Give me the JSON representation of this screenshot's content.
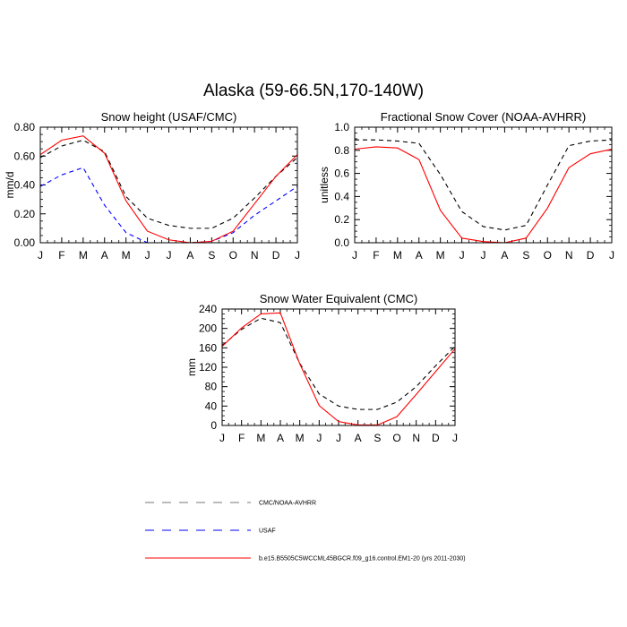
{
  "figure_title": "Alaska (59-66.5N,170-140W)",
  "legend": [
    {
      "label": "CMC/NOAA-AVHRR",
      "color": "#000000",
      "dash": "dashed"
    },
    {
      "label": "USAF",
      "color": "#0000ff",
      "dash": "dashed"
    },
    {
      "label": "b.e15.B5505C5WCCML45BGCR.f09_g16.control.EM1-20 (yrs 2011-2030)",
      "color": "#ff0000",
      "dash": "solid"
    }
  ],
  "chart_data": [
    {
      "type": "line",
      "title": "Snow height (USAF/CMC)",
      "xlabel": "",
      "ylabel": "mm/d",
      "ylim": [
        0,
        0.8
      ],
      "yticks": [
        "0.00",
        "0.20",
        "0.40",
        "0.60",
        "0.80"
      ],
      "categories": [
        "J",
        "F",
        "M",
        "A",
        "M",
        "J",
        "J",
        "A",
        "S",
        "O",
        "N",
        "D",
        "J"
      ],
      "series": [
        {
          "name": "CMC/NOAA-AVHRR",
          "color": "#000000",
          "dash": "dashed",
          "values": [
            0.59,
            0.67,
            0.71,
            0.63,
            0.32,
            0.17,
            0.12,
            0.1,
            0.1,
            0.17,
            0.31,
            0.46,
            0.59
          ]
        },
        {
          "name": "USAF",
          "color": "#0000ff",
          "dash": "dashed",
          "values": [
            0.39,
            0.47,
            0.52,
            0.26,
            0.07,
            0.0,
            0.0,
            0.0,
            0.01,
            0.07,
            0.19,
            0.29,
            0.39
          ]
        },
        {
          "name": "b.e15.B5505C5WCCML45BGCR.f09_g16.control.EM1-20 (yrs 2011-2030)",
          "color": "#ff0000",
          "dash": "solid",
          "values": [
            0.61,
            0.71,
            0.74,
            0.62,
            0.29,
            0.08,
            0.02,
            0.0,
            0.01,
            0.08,
            0.27,
            0.46,
            0.61
          ]
        }
      ]
    },
    {
      "type": "line",
      "title": "Fractional Snow Cover (NOAA-AVHRR)",
      "xlabel": "",
      "ylabel": "unitless",
      "ylim": [
        0,
        1.0
      ],
      "yticks": [
        "0.0",
        "0.2",
        "0.4",
        "0.6",
        "0.8",
        "1.0"
      ],
      "categories": [
        "J",
        "F",
        "M",
        "A",
        "M",
        "J",
        "J",
        "A",
        "S",
        "O",
        "N",
        "D",
        "J"
      ],
      "series": [
        {
          "name": "CMC/NOAA-AVHRR",
          "color": "#000000",
          "dash": "dashed",
          "values": [
            0.89,
            0.89,
            0.88,
            0.86,
            0.59,
            0.27,
            0.14,
            0.11,
            0.15,
            0.5,
            0.84,
            0.88,
            0.89
          ]
        },
        {
          "name": "b.e15.B5505C5WCCML45BGCR.f09_g16.control.EM1-20 (yrs 2011-2030)",
          "color": "#ff0000",
          "dash": "solid",
          "values": [
            0.81,
            0.83,
            0.82,
            0.72,
            0.28,
            0.04,
            0.01,
            0.0,
            0.04,
            0.3,
            0.65,
            0.77,
            0.81
          ]
        }
      ]
    },
    {
      "type": "line",
      "title": "Snow Water Equivalent (CMC)",
      "xlabel": "",
      "ylabel": "mm",
      "ylim": [
        0,
        240
      ],
      "yticks": [
        "0",
        "40",
        "80",
        "120",
        "160",
        "200",
        "240"
      ],
      "categories": [
        "J",
        "F",
        "M",
        "A",
        "M",
        "J",
        "J",
        "A",
        "S",
        "O",
        "N",
        "D",
        "J"
      ],
      "series": [
        {
          "name": "CMC/NOAA-AVHRR",
          "color": "#000000",
          "dash": "dashed",
          "values": [
            165,
            198,
            221,
            212,
            128,
            65,
            40,
            33,
            33,
            48,
            80,
            123,
            163
          ]
        },
        {
          "name": "b.e15.B5505C5WCCML45BGCR.f09_g16.control.EM1-20 (yrs 2011-2030)",
          "color": "#ff0000",
          "dash": "solid",
          "values": [
            163,
            201,
            230,
            232,
            127,
            41,
            8,
            1,
            1,
            18,
            64,
            111,
            158
          ]
        }
      ]
    }
  ]
}
